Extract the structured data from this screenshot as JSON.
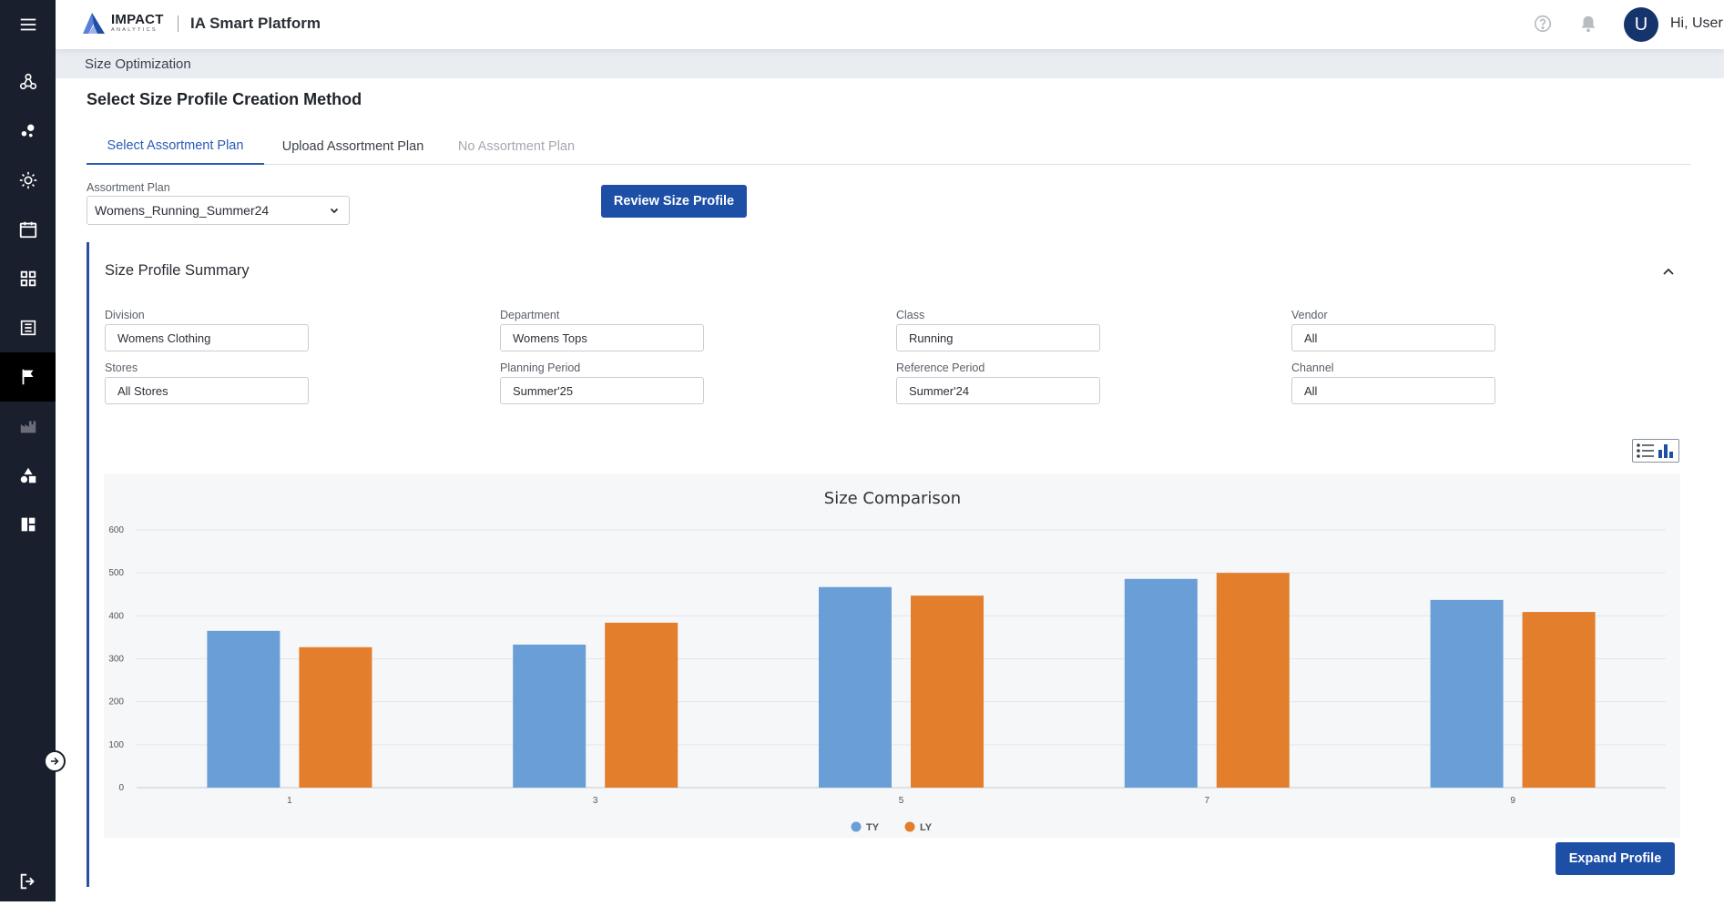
{
  "app": {
    "logo_line1": "IMPACT",
    "logo_line2": "ANALYTICS",
    "platform_name": "IA Smart Platform",
    "avatar_initial": "U",
    "greeting": "Hi, User"
  },
  "sidebar": {
    "items": [
      {
        "icon": "menu-icon"
      },
      {
        "icon": "network-icon"
      },
      {
        "icon": "molecule-icon"
      },
      {
        "icon": "lightbulb-icon"
      },
      {
        "icon": "calendar-icon"
      },
      {
        "icon": "grid-icon"
      },
      {
        "icon": "document-icon"
      },
      {
        "icon": "flag-icon",
        "active": true
      },
      {
        "icon": "factory-icon",
        "dim": true
      },
      {
        "icon": "shapes-icon"
      },
      {
        "icon": "dashboard-icon"
      },
      {
        "icon": "logout-icon"
      }
    ]
  },
  "breadcrumb": "Size Optimization",
  "page": {
    "title": "Select Size Profile Creation Method",
    "tabs": [
      {
        "label": "Select Assortment Plan",
        "state": "active"
      },
      {
        "label": "Upload Assortment Plan",
        "state": "normal"
      },
      {
        "label": "No Assortment Plan",
        "state": "disabled"
      }
    ],
    "assortment_plan_label": "Assortment Plan",
    "assortment_plan_value": "Womens_Running_Summer24",
    "review_button": "Review Size Profile"
  },
  "summary": {
    "title": "Size Profile Summary",
    "fields": {
      "division": {
        "label": "Division",
        "value": "Womens Clothing"
      },
      "department": {
        "label": "Department",
        "value": "Womens Tops"
      },
      "class": {
        "label": "Class",
        "value": "Running"
      },
      "vendor": {
        "label": "Vendor",
        "value": "All"
      },
      "stores": {
        "label": "Stores",
        "value": "All Stores"
      },
      "planning_period": {
        "label": "Planning Period",
        "value": "Summer'25"
      },
      "reference_period": {
        "label": "Reference Period",
        "value": "Summer'24"
      },
      "channel": {
        "label": "Channel",
        "value": "All"
      }
    },
    "expand_button": "Expand Profile"
  },
  "colors": {
    "ty": "#6a9ed6",
    "ly": "#e37e2c",
    "primary": "#1d4fa6"
  },
  "chart_data": {
    "type": "bar",
    "title": "Size Comparison",
    "categories": [
      "1",
      "3",
      "5",
      "7",
      "9"
    ],
    "series": [
      {
        "name": "TY",
        "values": [
          365,
          333,
          467,
          486,
          437
        ]
      },
      {
        "name": "LY",
        "values": [
          327,
          384,
          447,
          500,
          409
        ]
      }
    ],
    "yticks": [
      0,
      100,
      200,
      300,
      400,
      500,
      600
    ],
    "ylim": [
      0,
      600
    ],
    "grid": true,
    "legend": "bottom-center"
  }
}
